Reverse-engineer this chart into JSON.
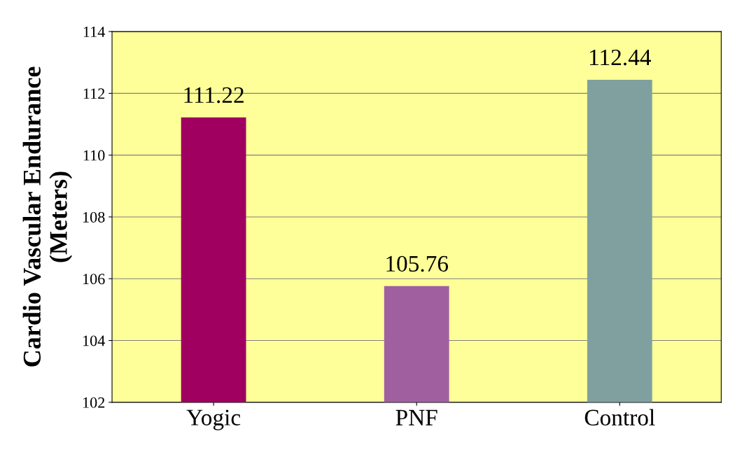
{
  "chart_data": {
    "type": "bar",
    "ylabel": "Cardio Vascular Endurance\n(Meters)",
    "categories": [
      "Yogic",
      "PNF",
      "Control"
    ],
    "values": [
      111.22,
      105.76,
      112.44
    ],
    "colors": [
      "#a00060",
      "#a060a0",
      "#80a0a0"
    ],
    "data_labels": true,
    "ylim": [
      102,
      114
    ],
    "yticks": [
      102,
      104,
      106,
      108,
      110,
      112,
      114
    ],
    "grid": "y"
  }
}
